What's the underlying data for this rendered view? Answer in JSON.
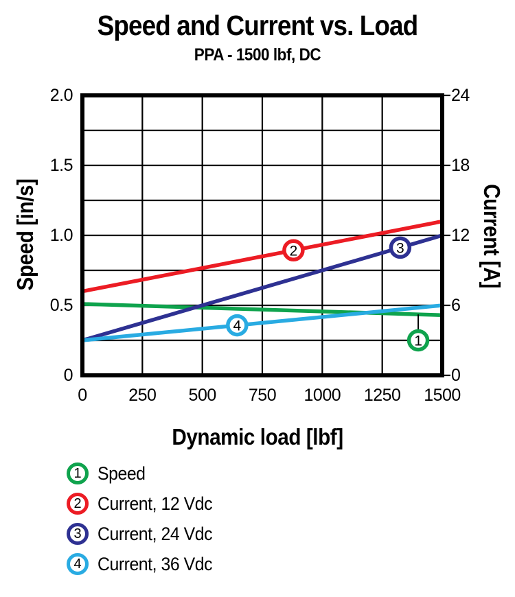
{
  "header": {
    "title": "Speed and Current vs. Load",
    "subtitle": "PPA - 1500 lbf, DC"
  },
  "colors": {
    "axis": "#000000",
    "background": "#FFFFFF",
    "speed_green": "#0FA34D",
    "current12_red": "#EC1C24",
    "current24_blue": "#2E3192",
    "current36_cyan": "#29ABE2"
  },
  "chart_data": {
    "type": "line",
    "title": "Speed and Current vs. Load",
    "subtitle": "PPA - 1500 lbf, DC",
    "grid": true,
    "x_axis": {
      "label": "Dynamic load [lbf]",
      "min": 0,
      "max": 1500,
      "tick_values": [
        0,
        250,
        500,
        750,
        1000,
        1250,
        1500
      ],
      "tick_labels": [
        "0",
        "250",
        "500",
        "750",
        "1000",
        "1250",
        "1500"
      ],
      "gridline_step": 250
    },
    "y_left_axis": {
      "label": "Speed [in/s]",
      "min": 0,
      "max": 2.0,
      "tick_values": [
        2.0,
        1.5,
        1.0,
        0.5,
        0
      ],
      "tick_labels": [
        "2.0",
        "1.5",
        "1.0",
        "0.5",
        "0"
      ],
      "gridline_step": 0.25
    },
    "y_right_axis": {
      "label": "Current [A]",
      "min": 0,
      "max": 24,
      "tick_values": [
        24,
        18,
        12,
        6,
        0
      ],
      "tick_labels": [
        "24",
        "18",
        "12",
        "6",
        "0"
      ]
    },
    "series": [
      {
        "id": 1,
        "name": "Speed",
        "axis": "left",
        "unit": "in/s",
        "color": "#0FA34D",
        "points": [
          [
            0,
            0.51
          ],
          [
            1500,
            0.43
          ]
        ]
      },
      {
        "id": 2,
        "name": "Current, 12 Vdc",
        "axis": "right",
        "unit": "A",
        "color": "#EC1C24",
        "points": [
          [
            0,
            7.2
          ],
          [
            1500,
            13.2
          ]
        ]
      },
      {
        "id": 3,
        "name": "Current, 24 Vdc",
        "axis": "right",
        "unit": "A",
        "color": "#2E3192",
        "points": [
          [
            0,
            3.0
          ],
          [
            1500,
            12.0
          ]
        ]
      },
      {
        "id": 4,
        "name": "Current, 36 Vdc",
        "axis": "right",
        "unit": "A",
        "color": "#29ABE2",
        "points": [
          [
            0,
            3.0
          ],
          [
            1500,
            6.0
          ]
        ]
      }
    ],
    "callouts": [
      {
        "series": 1,
        "label": "1",
        "x": 1400,
        "circle_y_left": 0.25,
        "leader_line": true
      },
      {
        "series": 2,
        "label": "2",
        "x": 880
      },
      {
        "series": 3,
        "label": "3",
        "x": 1325
      },
      {
        "series": 4,
        "label": "4",
        "x": 645
      }
    ],
    "legend": {
      "position": "bottom-left",
      "items": [
        {
          "number": "1",
          "label": "Speed",
          "color": "#0FA34D"
        },
        {
          "number": "2",
          "label": "Current, 12 Vdc",
          "color": "#EC1C24"
        },
        {
          "number": "3",
          "label": "Current, 24 Vdc",
          "color": "#2E3192"
        },
        {
          "number": "4",
          "label": "Current, 36 Vdc",
          "color": "#29ABE2"
        }
      ]
    }
  }
}
